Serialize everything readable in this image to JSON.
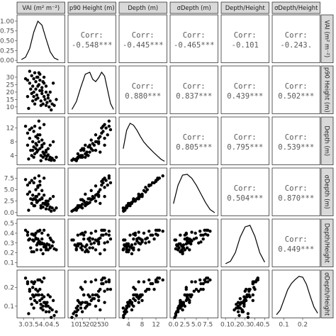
{
  "chart_data": {
    "type": "scatter-matrix",
    "variables": [
      {
        "key": "vai",
        "label": "VAI (m² m⁻²)",
        "range": [
          2.8,
          4.9
        ],
        "ticks": [
          3.0,
          3.5,
          4.0,
          4.5
        ],
        "tick_labels": [
          "3.0",
          "3.5",
          "4.0",
          "4.5"
        ]
      },
      {
        "key": "p90",
        "label": "p90 Height (m)",
        "range": [
          7,
          36
        ],
        "ticks": [
          10,
          15,
          20,
          25,
          30
        ],
        "tick_labels": [
          "10",
          "15",
          "20",
          "25",
          "30"
        ]
      },
      {
        "key": "depth",
        "label": "Depth (m)",
        "range": [
          2,
          14.5
        ],
        "ticks": [
          4,
          8,
          12
        ],
        "tick_labels": [
          "4",
          "8",
          "12"
        ]
      },
      {
        "key": "sdepth",
        "label": "σDepth (m)",
        "range": [
          -0.2,
          9.2
        ],
        "ticks": [
          0.0,
          2.5,
          5.0,
          7.5
        ],
        "tick_labels": [
          "0.0",
          "2.5",
          "5.0",
          "7.5"
        ]
      },
      {
        "key": "dh",
        "label": "Depth/Height",
        "range": [
          0.08,
          0.52
        ],
        "ticks": [
          0.1,
          0.2,
          0.3,
          0.4,
          0.5
        ],
        "tick_labels": [
          "0.1",
          "0.2",
          "0.3",
          "0.4",
          "0.5"
        ]
      },
      {
        "key": "sdh",
        "label": "σDepth/Height",
        "range": [
          0.05,
          0.28
        ],
        "ticks": [
          0.1,
          0.2
        ],
        "tick_labels": [
          "0.1",
          "0.2"
        ]
      }
    ],
    "correlations": [
      {
        "row": "vai",
        "col": "p90",
        "text": "-0.548***"
      },
      {
        "row": "vai",
        "col": "depth",
        "text": "-0.445***"
      },
      {
        "row": "vai",
        "col": "sdepth",
        "text": "-0.465***"
      },
      {
        "row": "vai",
        "col": "dh",
        "text": "-0.101"
      },
      {
        "row": "vai",
        "col": "sdh",
        "text": "-0.243."
      },
      {
        "row": "p90",
        "col": "depth",
        "text": "0.880***"
      },
      {
        "row": "p90",
        "col": "sdepth",
        "text": "0.837***"
      },
      {
        "row": "p90",
        "col": "dh",
        "text": "0.439***"
      },
      {
        "row": "p90",
        "col": "sdh",
        "text": "0.502***"
      },
      {
        "row": "depth",
        "col": "sdepth",
        "text": "0.805***"
      },
      {
        "row": "depth",
        "col": "dh",
        "text": "0.795***"
      },
      {
        "row": "depth",
        "col": "sdh",
        "text": "0.539***"
      },
      {
        "row": "sdepth",
        "col": "dh",
        "text": "0.504***"
      },
      {
        "row": "sdepth",
        "col": "sdh",
        "text": "0.870***"
      },
      {
        "row": "dh",
        "col": "sdh",
        "text": "0.449***"
      }
    ],
    "corr_title": "Corr:",
    "density_axis": {
      "range": [
        0,
        1.1
      ],
      "ticks": [
        0.0,
        0.25,
        0.5,
        0.75,
        1.0
      ],
      "tick_labels": [
        "0.00",
        "0.25",
        "0.50",
        "0.75",
        "1.00"
      ]
    },
    "densities": {
      "vai": {
        "x": [
          2.9,
          3.1,
          3.3,
          3.5,
          3.7,
          3.9,
          4.1,
          4.3,
          4.5,
          4.7
        ],
        "y": [
          0.02,
          0.08,
          0.3,
          0.72,
          1.0,
          0.9,
          0.55,
          0.22,
          0.06,
          0.01
        ]
      },
      "p90": {
        "x": [
          8,
          11,
          14,
          17,
          20,
          22,
          24,
          26,
          28,
          30,
          32,
          34,
          36
        ],
        "y": [
          0.05,
          0.25,
          0.62,
          0.95,
          1.0,
          0.82,
          0.76,
          0.86,
          1.0,
          0.9,
          0.55,
          0.2,
          0.05
        ]
      },
      "depth": {
        "x": [
          2.5,
          3.5,
          4.5,
          5.5,
          6.5,
          7.5,
          8.5,
          9.5,
          10.5,
          11.5,
          12.5,
          13.5,
          14.5
        ],
        "y": [
          0.35,
          0.82,
          1.0,
          0.95,
          0.82,
          0.66,
          0.52,
          0.42,
          0.33,
          0.24,
          0.16,
          0.08,
          0.03
        ]
      },
      "sdepth": {
        "x": [
          0,
          1,
          2,
          3,
          4,
          5,
          6,
          7,
          8,
          9
        ],
        "y": [
          0.25,
          0.72,
          0.98,
          1.0,
          0.9,
          0.72,
          0.5,
          0.28,
          0.1,
          0.02
        ]
      },
      "dh": {
        "x": [
          0.1,
          0.15,
          0.2,
          0.25,
          0.3,
          0.35,
          0.4,
          0.45,
          0.5
        ],
        "y": [
          0.02,
          0.08,
          0.3,
          0.7,
          0.96,
          1.0,
          0.72,
          0.3,
          0.06
        ]
      },
      "sdh": {
        "x": [
          0.06,
          0.08,
          0.1,
          0.12,
          0.14,
          0.16,
          0.18,
          0.2,
          0.22,
          0.24,
          0.26,
          0.28
        ],
        "y": [
          0.02,
          0.14,
          0.4,
          0.66,
          0.82,
          0.92,
          1.0,
          0.98,
          0.8,
          0.5,
          0.22,
          0.06
        ]
      }
    },
    "observations": [
      {
        "vai": 3.2,
        "p90": 28.0,
        "depth": 10.5,
        "sdepth": 6.0,
        "dh": 0.38,
        "sdh": 0.22
      },
      {
        "vai": 3.3,
        "p90": 26.0,
        "depth": 9.0,
        "sdepth": 4.5,
        "dh": 0.34,
        "sdh": 0.18
      },
      {
        "vai": 3.4,
        "p90": 31.0,
        "depth": 12.0,
        "sdepth": 7.0,
        "dh": 0.39,
        "sdh": 0.23
      },
      {
        "vai": 3.45,
        "p90": 24.0,
        "depth": 8.0,
        "sdepth": 3.8,
        "dh": 0.33,
        "sdh": 0.16
      },
      {
        "vai": 3.5,
        "p90": 29.0,
        "depth": 11.0,
        "sdepth": 6.5,
        "dh": 0.38,
        "sdh": 0.22
      },
      {
        "vai": 3.5,
        "p90": 20.0,
        "depth": 6.5,
        "sdepth": 3.0,
        "dh": 0.32,
        "sdh": 0.15
      },
      {
        "vai": 3.55,
        "p90": 33.0,
        "depth": 12.5,
        "sdepth": 7.5,
        "dh": 0.38,
        "sdh": 0.23
      },
      {
        "vai": 3.6,
        "p90": 22.0,
        "depth": 7.5,
        "sdepth": 3.5,
        "dh": 0.34,
        "sdh": 0.16
      },
      {
        "vai": 3.6,
        "p90": 27.0,
        "depth": 9.5,
        "sdepth": 5.0,
        "dh": 0.35,
        "sdh": 0.19
      },
      {
        "vai": 3.65,
        "p90": 18.0,
        "depth": 5.0,
        "sdepth": 2.2,
        "dh": 0.28,
        "sdh": 0.12
      },
      {
        "vai": 3.7,
        "p90": 30.0,
        "depth": 9.0,
        "sdepth": 5.5,
        "dh": 0.3,
        "sdh": 0.18
      },
      {
        "vai": 3.7,
        "p90": 16.0,
        "depth": 5.5,
        "sdepth": 2.5,
        "dh": 0.34,
        "sdh": 0.16
      },
      {
        "vai": 3.75,
        "p90": 25.0,
        "depth": 8.0,
        "sdepth": 4.0,
        "dh": 0.32,
        "sdh": 0.16
      },
      {
        "vai": 3.8,
        "p90": 21.0,
        "depth": 6.0,
        "sdepth": 2.8,
        "dh": 0.29,
        "sdh": 0.13
      },
      {
        "vai": 3.8,
        "p90": 32.0,
        "depth": 10.0,
        "sdepth": 6.0,
        "dh": 0.31,
        "sdh": 0.19
      },
      {
        "vai": 3.85,
        "p90": 14.0,
        "depth": 4.0,
        "sdepth": 1.5,
        "dh": 0.29,
        "sdh": 0.11
      },
      {
        "vai": 3.9,
        "p90": 19.0,
        "depth": 6.5,
        "sdepth": 3.0,
        "dh": 0.34,
        "sdh": 0.16
      },
      {
        "vai": 3.9,
        "p90": 23.0,
        "depth": 7.0,
        "sdepth": 3.2,
        "dh": 0.3,
        "sdh": 0.14
      },
      {
        "vai": 3.95,
        "p90": 12.0,
        "depth": 3.5,
        "sdepth": 1.2,
        "dh": 0.29,
        "sdh": 0.1
      },
      {
        "vai": 4.0,
        "p90": 17.0,
        "depth": 4.5,
        "sdepth": 2.0,
        "dh": 0.26,
        "sdh": 0.12
      },
      {
        "vai": 4.0,
        "p90": 26.0,
        "depth": 7.5,
        "sdepth": 3.8,
        "dh": 0.29,
        "sdh": 0.15
      },
      {
        "vai": 4.05,
        "p90": 15.0,
        "depth": 4.0,
        "sdepth": 1.8,
        "dh": 0.27,
        "sdh": 0.12
      },
      {
        "vai": 4.1,
        "p90": 20.0,
        "depth": 5.0,
        "sdepth": 2.2,
        "dh": 0.25,
        "sdh": 0.11
      },
      {
        "vai": 4.1,
        "p90": 11.0,
        "depth": 3.0,
        "sdepth": 0.8,
        "dh": 0.27,
        "sdh": 0.07
      },
      {
        "vai": 4.15,
        "p90": 13.0,
        "depth": 3.8,
        "sdepth": 1.5,
        "dh": 0.29,
        "sdh": 0.12
      },
      {
        "vai": 4.2,
        "p90": 18.0,
        "depth": 4.2,
        "sdepth": 1.8,
        "dh": 0.23,
        "sdh": 0.1
      },
      {
        "vai": 4.25,
        "p90": 10.0,
        "depth": 2.8,
        "sdepth": 0.7,
        "dh": 0.28,
        "sdh": 0.07
      },
      {
        "vai": 4.3,
        "p90": 14.0,
        "depth": 3.5,
        "sdepth": 1.2,
        "dh": 0.25,
        "sdh": 0.09
      },
      {
        "vai": 4.4,
        "p90": 12.0,
        "depth": 3.2,
        "sdepth": 1.0,
        "dh": 0.27,
        "sdh": 0.08
      },
      {
        "vai": 4.5,
        "p90": 11.0,
        "depth": 2.6,
        "sdepth": 0.5,
        "dh": 0.24,
        "sdh": 0.05
      },
      {
        "vai": 3.35,
        "p90": 22.0,
        "depth": 5.5,
        "sdepth": 3.0,
        "dh": 0.25,
        "sdh": 0.14
      },
      {
        "vai": 3.6,
        "p90": 15.0,
        "depth": 6.0,
        "sdepth": 2.8,
        "dh": 0.4,
        "sdh": 0.19
      },
      {
        "vai": 3.8,
        "p90": 28.0,
        "depth": 12.0,
        "sdepth": 6.8,
        "dh": 0.43,
        "sdh": 0.24
      },
      {
        "vai": 3.7,
        "p90": 24.0,
        "depth": 10.0,
        "sdepth": 5.8,
        "dh": 0.42,
        "sdh": 0.24
      },
      {
        "vai": 3.9,
        "p90": 21.0,
        "depth": 8.5,
        "sdepth": 4.8,
        "dh": 0.4,
        "sdh": 0.23
      },
      {
        "vai": 3.5,
        "p90": 17.0,
        "depth": 3.5,
        "sdepth": 1.5,
        "dh": 0.21,
        "sdh": 0.09
      },
      {
        "vai": 4.0,
        "p90": 30.0,
        "depth": 13.0,
        "sdepth": 7.5,
        "dh": 0.43,
        "sdh": 0.25
      },
      {
        "vai": 3.4,
        "p90": 19.0,
        "depth": 4.0,
        "sdepth": 2.0,
        "dh": 0.21,
        "sdh": 0.11
      },
      {
        "vai": 4.2,
        "p90": 16.0,
        "depth": 6.0,
        "sdepth": 2.5,
        "dh": 0.38,
        "sdh": 0.16
      },
      {
        "vai": 3.75,
        "p90": 33.0,
        "depth": 14.0,
        "sdepth": 8.0,
        "dh": 0.42,
        "sdh": 0.24
      },
      {
        "vai": 3.55,
        "p90": 12.0,
        "depth": 4.5,
        "sdepth": 1.5,
        "dh": 0.38,
        "sdh": 0.13
      },
      {
        "vai": 4.3,
        "p90": 20.0,
        "depth": 7.0,
        "sdepth": 3.0,
        "dh": 0.35,
        "sdh": 0.15
      },
      {
        "vai": 3.25,
        "p90": 9.0,
        "depth": 3.0,
        "sdepth": 0.5,
        "dh": 0.33,
        "sdh": 0.06
      },
      {
        "vai": 3.95,
        "p90": 27.0,
        "depth": 5.0,
        "sdepth": 2.0,
        "dh": 0.19,
        "sdh": 0.08
      },
      {
        "vai": 3.65,
        "p90": 30.0,
        "depth": 7.0,
        "sdepth": 3.5,
        "dh": 0.23,
        "sdh": 0.12
      },
      {
        "vai": 4.45,
        "p90": 26.0,
        "depth": 8.0,
        "sdepth": 3.5,
        "dh": 0.31,
        "sdh": 0.13
      },
      {
        "vai": 3.85,
        "p90": 11.0,
        "depth": 2.5,
        "sdepth": 1.0,
        "dh": 0.23,
        "sdh": 0.09
      },
      {
        "vai": 3.3,
        "p90": 34.0,
        "depth": 11.5,
        "sdepth": 6.5,
        "dh": 0.34,
        "sdh": 0.19
      },
      {
        "vai": 4.1,
        "p90": 24.0,
        "depth": 5.5,
        "sdepth": 2.5,
        "dh": 0.23,
        "sdh": 0.1
      },
      {
        "vai": 3.45,
        "p90": 14.0,
        "depth": 5.5,
        "sdepth": 2.8,
        "dh": 0.39,
        "sdh": 0.2
      },
      {
        "vai": 4.6,
        "p90": 15.0,
        "depth": 3.5,
        "sdepth": 1.0,
        "dh": 0.23,
        "sdh": 0.07
      },
      {
        "vai": 3.1,
        "p90": 29.0,
        "depth": 12.5,
        "sdepth": 7.2,
        "dh": 0.43,
        "sdh": 0.25
      },
      {
        "vai": 3.2,
        "p90": 17.0,
        "depth": 7.0,
        "sdepth": 4.0,
        "dh": 0.41,
        "sdh": 0.23
      },
      {
        "vai": 4.35,
        "p90": 8.0,
        "depth": 2.6,
        "sdepth": 0.3,
        "dh": 0.33,
        "sdh": 0.04
      }
    ]
  }
}
